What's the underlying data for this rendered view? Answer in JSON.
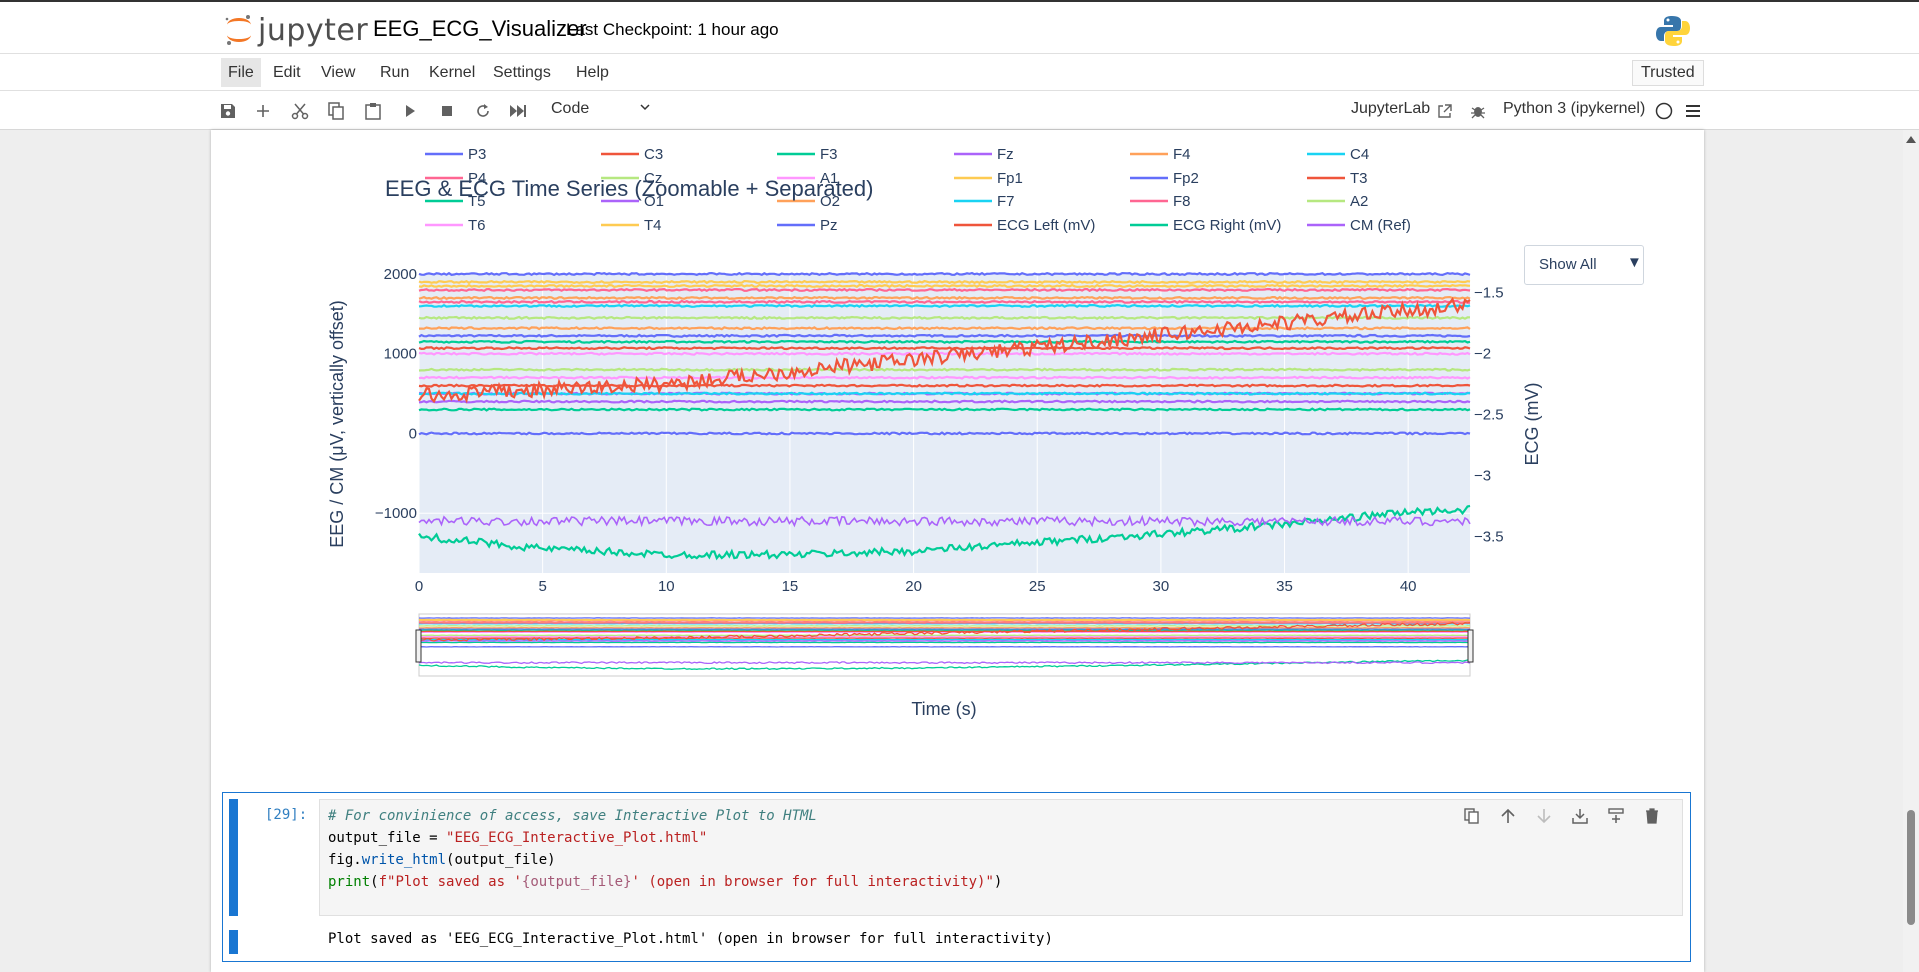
{
  "header": {
    "logo_text": "jupyter",
    "notebook_title": "EEG_ECG_Visualizer",
    "checkpoint": "Last Checkpoint: 1 hour ago"
  },
  "menu": {
    "items": [
      "File",
      "Edit",
      "View",
      "Run",
      "Kernel",
      "Settings",
      "Help"
    ],
    "trusted": "Trusted"
  },
  "toolbar": {
    "cell_type": "Code",
    "jupyterlab_link": "JupyterLab",
    "kernel": "Python 3 (ipykernel)"
  },
  "dropdown": {
    "label": "Show All"
  },
  "chart_data": {
    "type": "line",
    "title": "EEG & ECG Time Series (Zoomable + Separated)",
    "xlabel": "Time (s)",
    "ylabel": "EEG / CM (μV, vertically offset)",
    "y2label": "ECG (mV)",
    "xlim": [
      0,
      42.5
    ],
    "ylim": [
      -1750,
      2000
    ],
    "y2lim": [
      -3.8,
      -1.35
    ],
    "x_ticks": [
      0,
      5,
      10,
      15,
      20,
      25,
      30,
      35,
      40
    ],
    "y_ticks": [
      2000,
      1000,
      0,
      -1000
    ],
    "y_tick_labels": [
      "2000",
      "1000",
      "0",
      "−1000"
    ],
    "y2_ticks": [
      -1.5,
      -2,
      -2.5,
      -3,
      -3.5
    ],
    "y2_tick_labels": [
      "−1.5",
      "−2",
      "−2.5",
      "−3",
      "−3.5"
    ],
    "grid": true,
    "legend_position": "top",
    "rangeslider": true,
    "series": [
      {
        "name": "P3",
        "color": "#636efa",
        "offset": 1225
      },
      {
        "name": "C3",
        "color": "#ef553b",
        "offset": 600
      },
      {
        "name": "F3",
        "color": "#00cc96",
        "offset": 1150
      },
      {
        "name": "Fz",
        "color": "#ab63fa",
        "offset": 500
      },
      {
        "name": "F4",
        "color": "#ffa15a",
        "offset": 1700
      },
      {
        "name": "C4",
        "color": "#19d3f3",
        "offset": 500
      },
      {
        "name": "P4",
        "color": "#ff6692",
        "offset": 1800
      },
      {
        "name": "Cz",
        "color": "#b6e880",
        "offset": 800
      },
      {
        "name": "A1",
        "color": "#ff97ff",
        "offset": 1000
      },
      {
        "name": "Fp1",
        "color": "#fecb52",
        "offset": 1900
      },
      {
        "name": "Fp2",
        "color": "#636efa",
        "offset": 2000
      },
      {
        "name": "T3",
        "color": "#ef553b",
        "offset": 1070
      },
      {
        "name": "T5",
        "color": "#00cc96",
        "offset": 300
      },
      {
        "name": "O1",
        "color": "#ab63fa",
        "offset": 400
      },
      {
        "name": "O2",
        "color": "#ffa15a",
        "offset": 1320
      },
      {
        "name": "F7",
        "color": "#19d3f3",
        "offset": 1600
      },
      {
        "name": "F8",
        "color": "#ff6692",
        "offset": 1650
      },
      {
        "name": "A2",
        "color": "#b6e880",
        "offset": 1450
      },
      {
        "name": "T6",
        "color": "#ff97ff",
        "offset": 700
      },
      {
        "name": "T4",
        "color": "#fecb52",
        "offset": 1850
      },
      {
        "name": "Pz",
        "color": "#636efa",
        "offset": 0
      },
      {
        "name": "ECG Left (mV)",
        "color": "#ef553b",
        "axis": "y2",
        "x": [
          0,
          10,
          20,
          30,
          40,
          42.5
        ],
        "values": [
          -2.35,
          -2.25,
          -2.05,
          -1.85,
          -1.65,
          -1.6
        ]
      },
      {
        "name": "ECG Right (mV)",
        "color": "#00cc96",
        "axis": "y2",
        "x": [
          0,
          5,
          10,
          15,
          20,
          25,
          30,
          35,
          40,
          42.5
        ],
        "values": [
          -3.5,
          -3.6,
          -3.65,
          -3.65,
          -3.62,
          -3.55,
          -3.48,
          -3.4,
          -3.3,
          -3.28
        ]
      },
      {
        "name": "CM (Ref)",
        "color": "#ab63fa",
        "offset": -1100
      }
    ]
  },
  "code_cell": {
    "prompt": "[29]:",
    "line1": "# For convinience of access, save Interactive Plot to HTML",
    "l2_var": "output_file = ",
    "l2_str": "\"EEG_ECG_Interactive_Plot.html\"",
    "l3_pre": "fig.",
    "l3_fn": "write_html",
    "l3_post": "(output_file)",
    "l4_bi": "print",
    "l4_open": "(",
    "l4_str1": "f\"Plot saved as '",
    "l4_sub": "{output_file}",
    "l4_str2": "' (open in browser for full interactivity)\"",
    "l4_close": ")",
    "output": "Plot saved as 'EEG_ECG_Interactive_Plot.html' (open in browser for full interactivity)"
  }
}
